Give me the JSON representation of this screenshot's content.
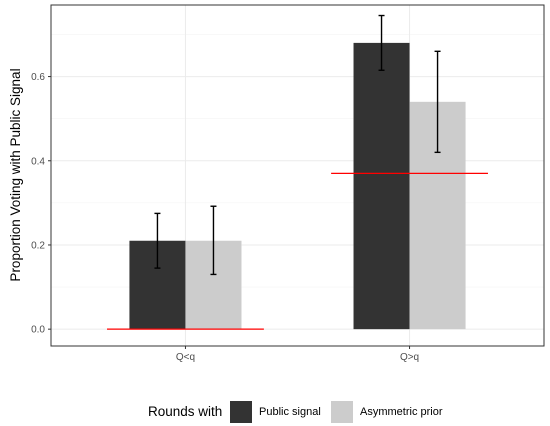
{
  "chart_data": {
    "type": "bar",
    "title": "",
    "xlabel": "",
    "ylabel": "Proportion Voting with Public Signal",
    "categories": [
      "Q<q",
      "Q>q"
    ],
    "ylim": [
      -0.04,
      0.77
    ],
    "yticks": [
      0.0,
      0.2,
      0.4,
      0.6
    ],
    "ytick_labels": [
      "0.0",
      "0.2",
      "0.4",
      "0.6"
    ],
    "grid": true,
    "legend": {
      "title": "Rounds with",
      "position": "bottom"
    },
    "series": [
      {
        "name": "Public signal",
        "color": "#333333",
        "values": [
          0.21,
          0.68
        ],
        "err_low": [
          0.145,
          0.615
        ],
        "err_high": [
          0.275,
          0.745
        ]
      },
      {
        "name": "Asymmetric prior",
        "color": "#cccccc",
        "values": [
          0.21,
          0.54
        ],
        "err_low": [
          0.13,
          0.42
        ],
        "err_high": [
          0.292,
          0.66
        ]
      }
    ],
    "reference_lines": {
      "color": "#ff0000",
      "values": [
        0.0,
        0.37
      ]
    }
  }
}
